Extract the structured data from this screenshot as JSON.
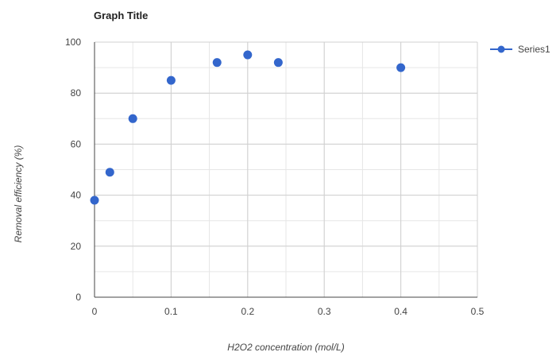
{
  "chart_data": {
    "type": "scatter",
    "title": "Graph Title",
    "xlabel": "H2O2 concentration (mol/L)",
    "ylabel": "Removal efficiency (%)",
    "xlim": [
      0,
      0.5
    ],
    "ylim": [
      0,
      100
    ],
    "x_ticks": [
      "0",
      "0.1",
      "0.2",
      "0.3",
      "0.4",
      "0.5"
    ],
    "y_ticks": [
      "0",
      "20",
      "40",
      "60",
      "80",
      "100"
    ],
    "x_minor_step": 0.05,
    "y_minor_step": 10,
    "grid": true,
    "legend_position": "top-right",
    "series": [
      {
        "name": "Series1",
        "color": "#3366cc",
        "x": [
          0,
          0.02,
          0.05,
          0.1,
          0.16,
          0.2,
          0.24,
          0.4
        ],
        "y": [
          38,
          49,
          70,
          85,
          92,
          95,
          92,
          90
        ]
      }
    ]
  }
}
